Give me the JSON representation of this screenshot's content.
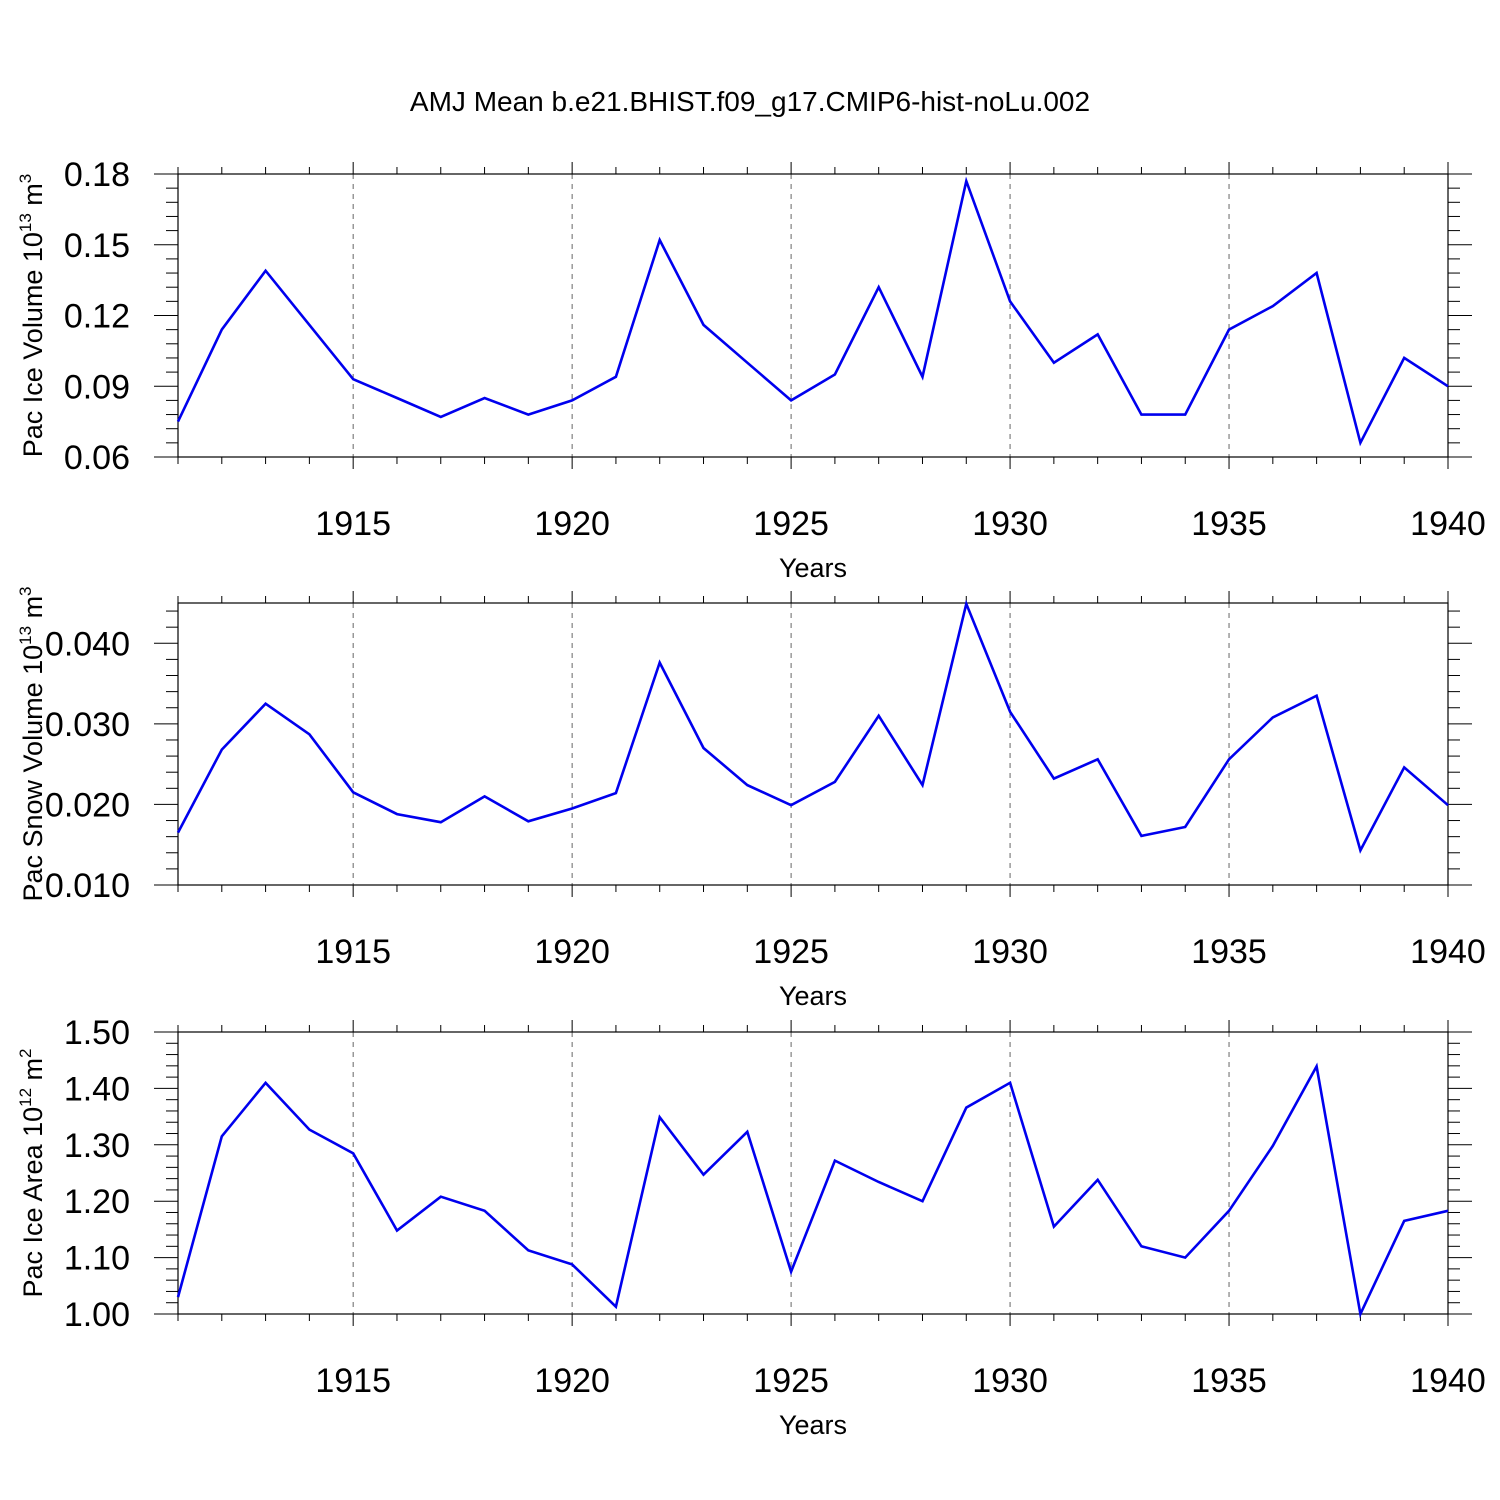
{
  "title": "AMJ Mean b.e21.BHIST.f09_g17.CMIP6-hist-noLu.002",
  "chart_data": [
    {
      "type": "line",
      "ylabel": {
        "text": "Pac Ice Volume 10",
        "exp": "13",
        "unit": " m",
        "unit_exp": "3"
      },
      "xlabel": "Years",
      "xlim": [
        1911,
        1940
      ],
      "ylim": [
        0.06,
        0.18
      ],
      "yticks": [
        0.06,
        0.09,
        0.12,
        0.15,
        0.18
      ],
      "ytick_labels": [
        "0.06",
        "0.09",
        "0.12",
        "0.15",
        "0.18"
      ],
      "xticks": [
        1915,
        1920,
        1925,
        1930,
        1935,
        1940
      ],
      "xtick_labels": [
        "1915",
        "1920",
        "1925",
        "1930",
        "1935",
        "1940"
      ],
      "grid": "vertical dashed at major x ticks",
      "line_color": "#0000ee",
      "series": [
        {
          "x": [
            1911,
            1912,
            1913,
            1914,
            1915,
            1916,
            1917,
            1918,
            1919,
            1920,
            1921,
            1922,
            1923,
            1924,
            1925,
            1926,
            1927,
            1928,
            1929,
            1930,
            1931,
            1932,
            1933,
            1934,
            1935,
            1936,
            1937,
            1938,
            1939,
            1940
          ],
          "values": [
            0.075,
            0.114,
            0.139,
            0.116,
            0.093,
            0.085,
            0.077,
            0.085,
            0.078,
            0.084,
            0.094,
            0.152,
            0.116,
            0.1,
            0.084,
            0.095,
            0.132,
            0.094,
            0.177,
            0.126,
            0.1,
            0.112,
            0.078,
            0.078,
            0.114,
            0.124,
            0.138,
            0.066,
            0.102,
            0.09
          ]
        }
      ]
    },
    {
      "type": "line",
      "ylabel": {
        "text": "Pac Snow Volume 10",
        "exp": "13",
        "unit": " m",
        "unit_exp": "3"
      },
      "xlabel": "Years",
      "xlim": [
        1911,
        1940
      ],
      "ylim": [
        0.01,
        0.045
      ],
      "yticks": [
        0.01,
        0.02,
        0.03,
        0.04
      ],
      "ytick_labels": [
        "0.010",
        "0.020",
        "0.030",
        "0.040"
      ],
      "xticks": [
        1915,
        1920,
        1925,
        1930,
        1935,
        1940
      ],
      "xtick_labels": [
        "1915",
        "1920",
        "1925",
        "1930",
        "1935",
        "1940"
      ],
      "grid": "vertical dashed at major x ticks",
      "line_color": "#0000ee",
      "series": [
        {
          "x": [
            1911,
            1912,
            1913,
            1914,
            1915,
            1916,
            1917,
            1918,
            1919,
            1920,
            1921,
            1922,
            1923,
            1924,
            1925,
            1926,
            1927,
            1928,
            1929,
            1930,
            1931,
            1932,
            1933,
            1934,
            1935,
            1936,
            1937,
            1938,
            1939,
            1940
          ],
          "values": [
            0.0165,
            0.0268,
            0.0325,
            0.0287,
            0.0215,
            0.0188,
            0.0178,
            0.021,
            0.0179,
            0.0195,
            0.0214,
            0.0376,
            0.027,
            0.0224,
            0.0199,
            0.0228,
            0.031,
            0.0224,
            0.0449,
            0.0315,
            0.0232,
            0.0256,
            0.0161,
            0.0172,
            0.0256,
            0.0308,
            0.0335,
            0.0143,
            0.0246,
            0.0199
          ]
        }
      ]
    },
    {
      "type": "line",
      "ylabel": {
        "text": "Pac Ice Area 10",
        "exp": "12",
        "unit": " m",
        "unit_exp": "2"
      },
      "xlabel": "Years",
      "xlim": [
        1911,
        1940
      ],
      "ylim": [
        1.0,
        1.5
      ],
      "yticks": [
        1.0,
        1.1,
        1.2,
        1.3,
        1.4,
        1.5
      ],
      "ytick_labels": [
        "1.00",
        "1.10",
        "1.20",
        "1.30",
        "1.40",
        "1.50"
      ],
      "xticks": [
        1915,
        1920,
        1925,
        1930,
        1935,
        1940
      ],
      "xtick_labels": [
        "1915",
        "1920",
        "1925",
        "1930",
        "1935",
        "1940"
      ],
      "grid": "vertical dashed at major x ticks",
      "line_color": "#0000ee",
      "series": [
        {
          "x": [
            1911,
            1912,
            1913,
            1914,
            1915,
            1916,
            1917,
            1918,
            1919,
            1920,
            1921,
            1922,
            1923,
            1924,
            1925,
            1926,
            1927,
            1928,
            1929,
            1930,
            1931,
            1932,
            1933,
            1934,
            1935,
            1936,
            1937,
            1938,
            1939,
            1940
          ],
          "values": [
            1.03,
            1.315,
            1.41,
            1.327,
            1.285,
            1.148,
            1.208,
            1.183,
            1.113,
            1.088,
            1.013,
            1.349,
            1.247,
            1.323,
            1.075,
            1.272,
            1.234,
            1.2,
            1.366,
            1.41,
            1.155,
            1.238,
            1.12,
            1.1,
            1.183,
            1.298,
            1.439,
            1.0,
            1.165,
            1.183
          ]
        }
      ]
    }
  ]
}
